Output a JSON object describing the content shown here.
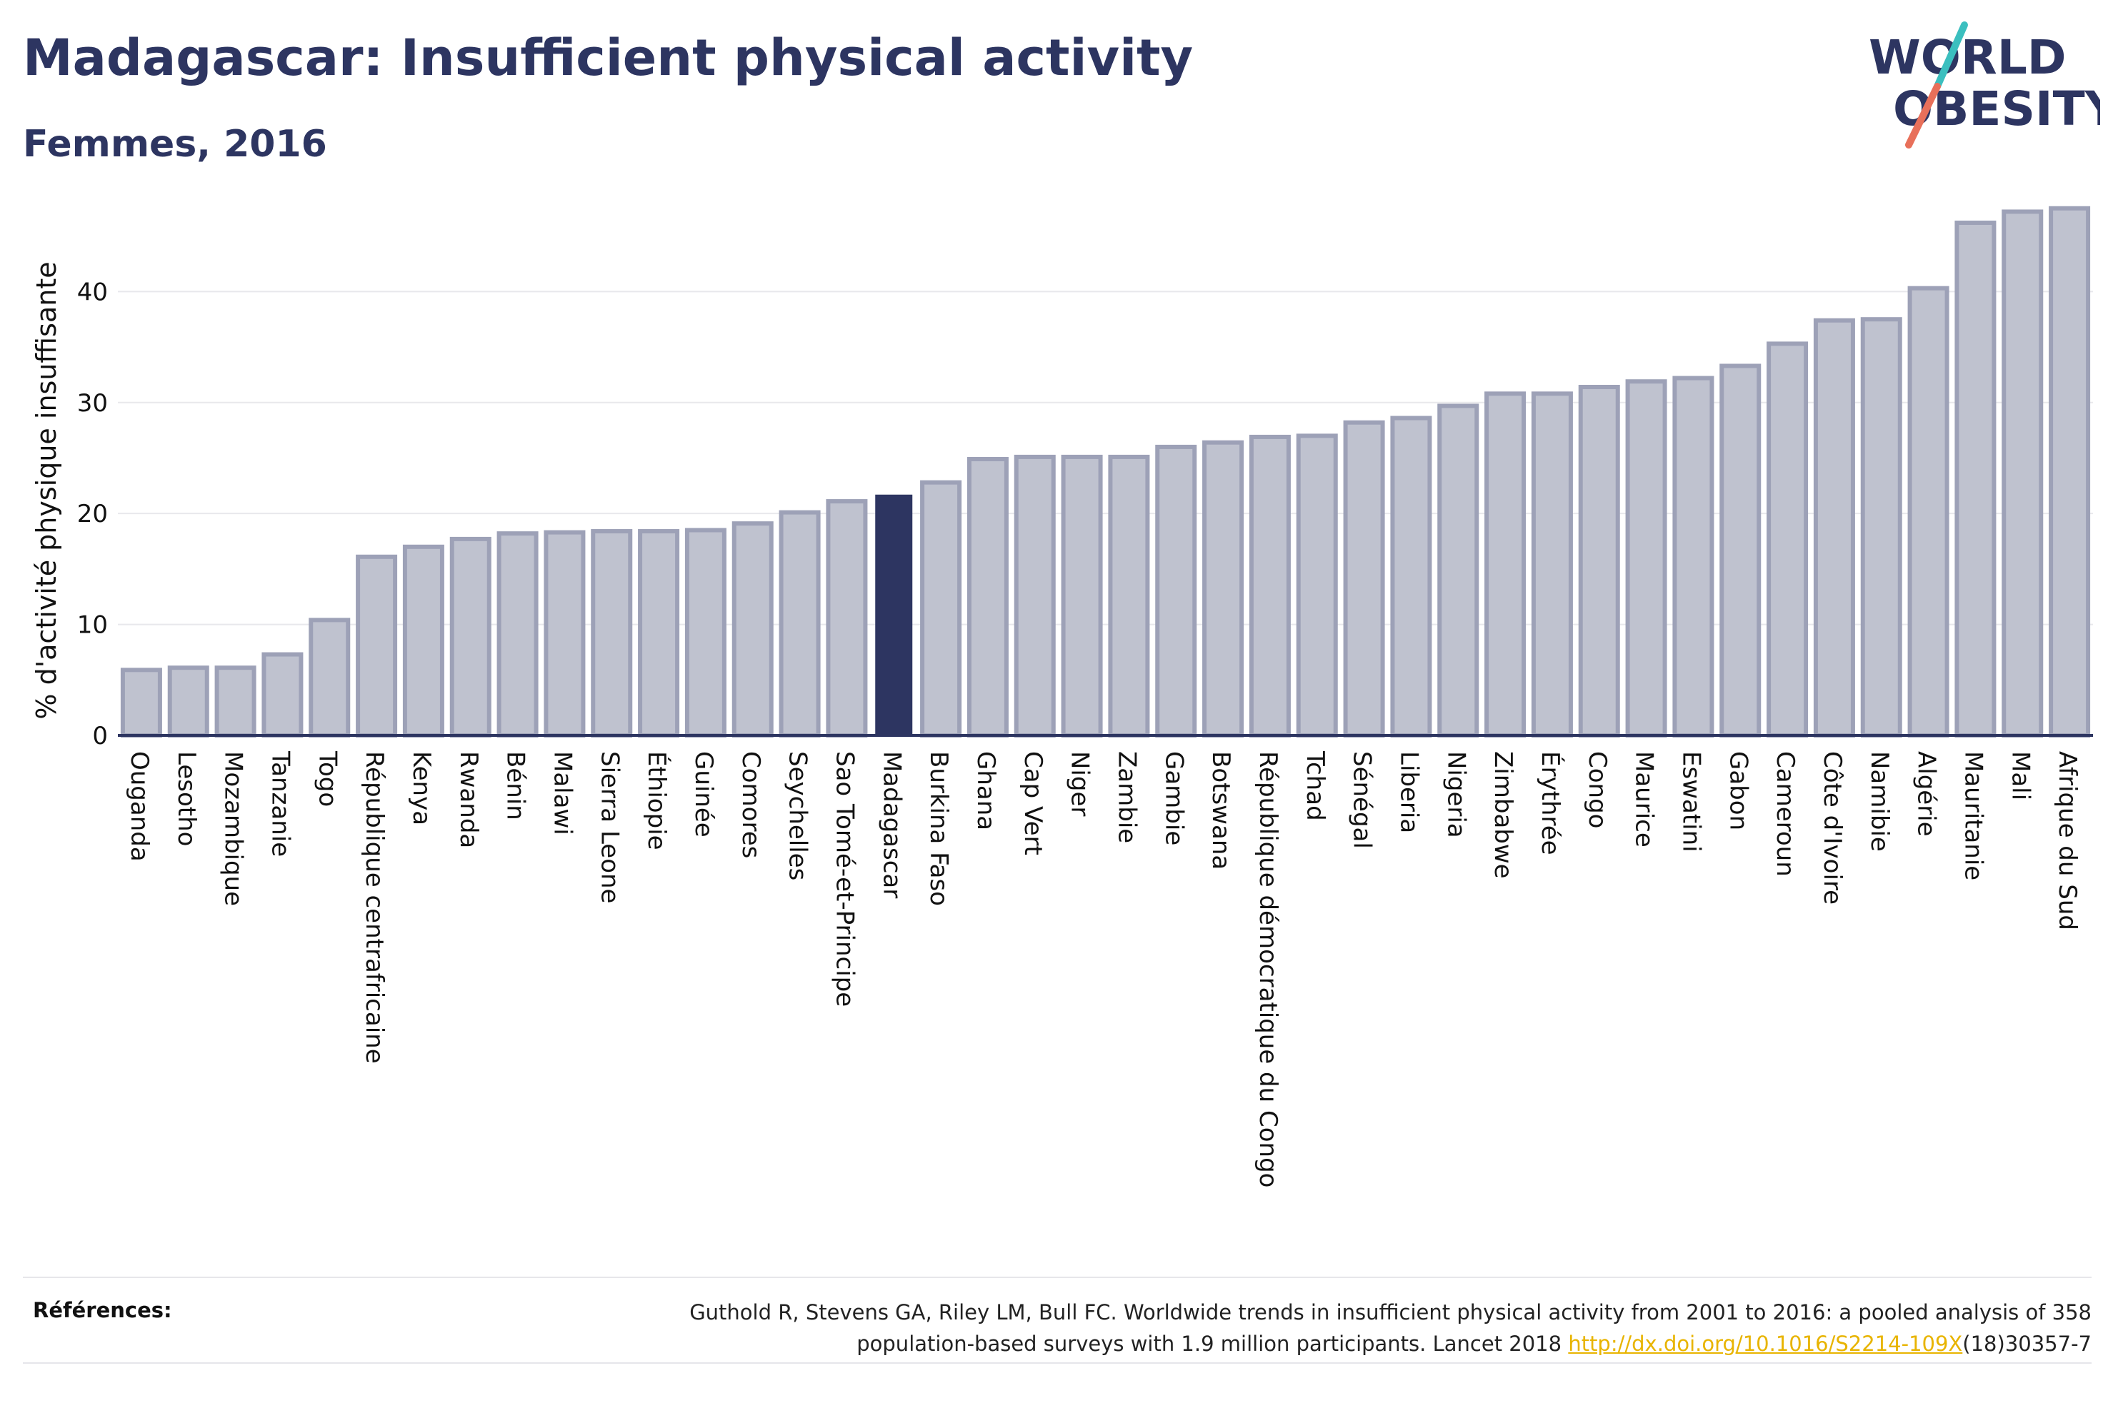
{
  "title": "Madagascar: Insufficient physical activity",
  "subtitle": "Femmes, 2016",
  "logo": {
    "line1": "WORLD",
    "line2": "OBESITY"
  },
  "colors": {
    "title": "#2d3561",
    "bar_fill": "#bfc2cf",
    "bar_stroke": "#9da1b7",
    "highlight": "#2d3561",
    "gridline": "#e8e8ec",
    "logo_teal": "#3bbfbf",
    "logo_coral": "#e8705a",
    "link": "#e8b400"
  },
  "chart_data": {
    "type": "bar",
    "title": "",
    "xlabel": "",
    "ylabel": "% d'activité physique insuffisante",
    "ylim": [
      0,
      48
    ],
    "yticks": [
      0,
      10,
      20,
      30,
      40
    ],
    "grid": true,
    "highlight": "Madagascar",
    "categories": [
      "Ouganda",
      "Lesotho",
      "Mozambique",
      "Tanzanie",
      "Togo",
      "République centrafricaine",
      "Kenya",
      "Rwanda",
      "Bénin",
      "Malawi",
      "Sierra Leone",
      "Éthiopie",
      "Guinée",
      "Comores",
      "Seychelles",
      "Sao Tomé-et-Principe",
      "Madagascar",
      "Burkina Faso",
      "Ghana",
      "Cap Vert",
      "Niger",
      "Zambie",
      "Gambie",
      "Botswana",
      "République démocratique du Congo",
      "Tchad",
      "Sénégal",
      "Liberia",
      "Nigeria",
      "Zimbabwe",
      "Érythrée",
      "Congo",
      "Maurice",
      "Eswatini",
      "Gabon",
      "Cameroun",
      "Côte d'Ivoire",
      "Namibie",
      "Algérie",
      "Mauritanie",
      "Mali",
      "Afrique du Sud"
    ],
    "values": [
      5.9,
      6.1,
      6.1,
      7.3,
      10.4,
      16.1,
      17.0,
      17.7,
      18.2,
      18.3,
      18.4,
      18.4,
      18.5,
      19.1,
      20.1,
      21.1,
      21.7,
      22.8,
      24.9,
      25.1,
      25.1,
      25.1,
      26.0,
      26.4,
      26.9,
      27.0,
      28.2,
      28.6,
      29.7,
      30.8,
      30.8,
      31.4,
      31.9,
      32.2,
      33.3,
      35.3,
      37.4,
      37.5,
      40.3,
      46.2,
      47.2,
      47.5
    ]
  },
  "references": {
    "label": "Références:",
    "line1": "Guthold R, Stevens GA, Riley LM, Bull FC. Worldwide trends in insufficient physical activity from 2001 to 2016: a pooled analysis of 358",
    "line2_prefix": "population-based surveys with 1.9 million participants. Lancet 2018 ",
    "link_text": "http://dx.doi.org/10.1016/S2214-109X",
    "line2_suffix": "(18)30357-7"
  }
}
